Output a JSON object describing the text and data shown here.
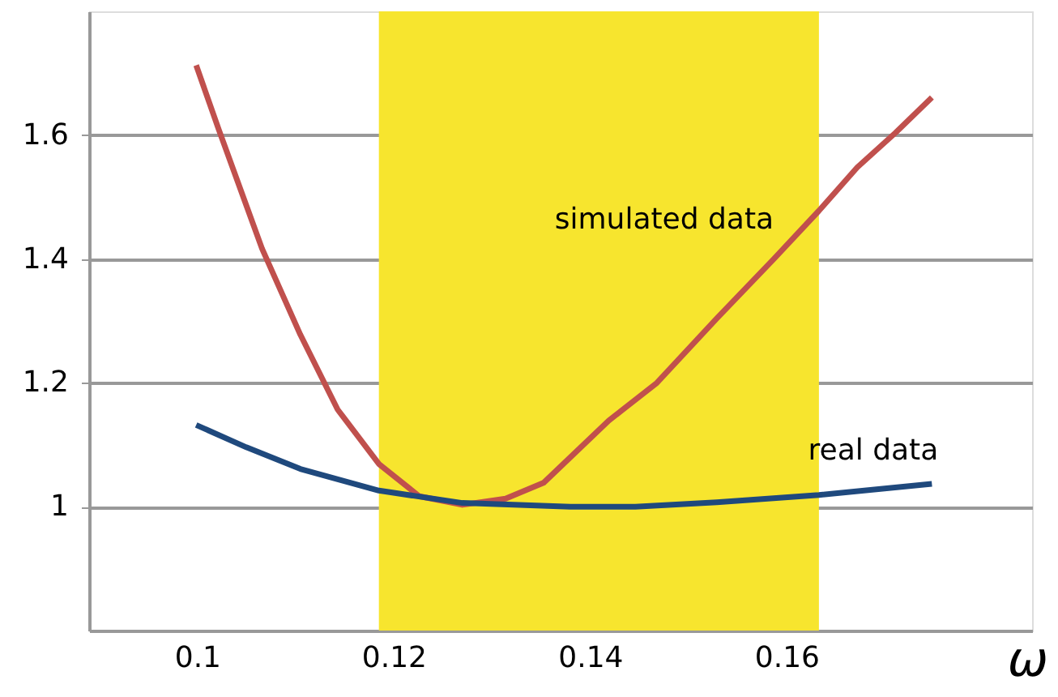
{
  "chart_data": {
    "type": "line",
    "xlabel": "ω",
    "xlim": [
      0.089,
      0.185
    ],
    "ylim": [
      0.8,
      1.8
    ],
    "xticks": [
      0.1,
      0.12,
      0.14,
      0.16
    ],
    "yticks": [
      1,
      1.2,
      1.4,
      1.6
    ],
    "grid": "y",
    "marker": "none",
    "line_style": "solid",
    "series": [
      {
        "name": "simulated data",
        "color": "#c0504d",
        "x": [
          0.0999,
          0.1022,
          0.1066,
          0.1105,
          0.1143,
          0.1185,
          0.1226,
          0.127,
          0.1314,
          0.1353,
          0.1419,
          0.1468,
          0.1529,
          0.1587,
          0.1633,
          0.1672,
          0.1711,
          0.1748
        ],
        "values": [
          1.713,
          1.609,
          1.417,
          1.278,
          1.157,
          1.069,
          1.017,
          1.003,
          1.013,
          1.039,
          1.139,
          1.2,
          1.304,
          1.4,
          1.478,
          1.548,
          1.604,
          1.661
        ]
      },
      {
        "name": "real data",
        "color": "#1f497d",
        "x": [
          0.0999,
          0.105,
          0.1105,
          0.1185,
          0.127,
          0.138,
          0.1446,
          0.1529,
          0.1633,
          0.1748
        ],
        "values": [
          1.132,
          1.096,
          1.061,
          1.026,
          1.006,
          1.0,
          1.0,
          1.007,
          1.019,
          1.037
        ]
      }
    ],
    "bands": [
      {
        "axis": "x",
        "from": 0.1185,
        "to": 0.1633,
        "color": "#f7e52e"
      }
    ]
  }
}
